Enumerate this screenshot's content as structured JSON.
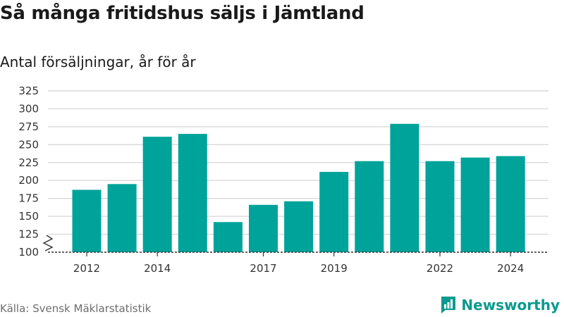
{
  "title": "Så många fritidshus säljs i Jämtland",
  "subtitle": "Antal försäljningar, år för år",
  "source": "Källa: Svensk Mäklarstatistik",
  "brand": "Newsworthy",
  "colors": {
    "bar": "#00a39a",
    "grid": "#d9d9d9",
    "axis": "#333333",
    "brand": "#0b9a8e"
  },
  "icons": {
    "logo": "newsworthy-bar-chart-logo",
    "axis_break": "axis-break-zigzag"
  },
  "chart_data": {
    "type": "bar",
    "categories": [
      "2012",
      "2013",
      "2014",
      "2015",
      "2016",
      "2017",
      "2018",
      "2019",
      "2020",
      "2021",
      "2022",
      "2023",
      "2024"
    ],
    "values": [
      187,
      195,
      261,
      265,
      142,
      166,
      171,
      212,
      227,
      279,
      227,
      232,
      234
    ],
    "x_tick_labels": [
      "2012",
      "2014",
      "2017",
      "2019",
      "2022",
      "2024"
    ],
    "y_ticks": [
      100,
      125,
      150,
      175,
      200,
      225,
      250,
      275,
      300,
      325
    ],
    "ylim": [
      100,
      325
    ],
    "y_axis_break": true,
    "grid": true,
    "legend": "none"
  }
}
